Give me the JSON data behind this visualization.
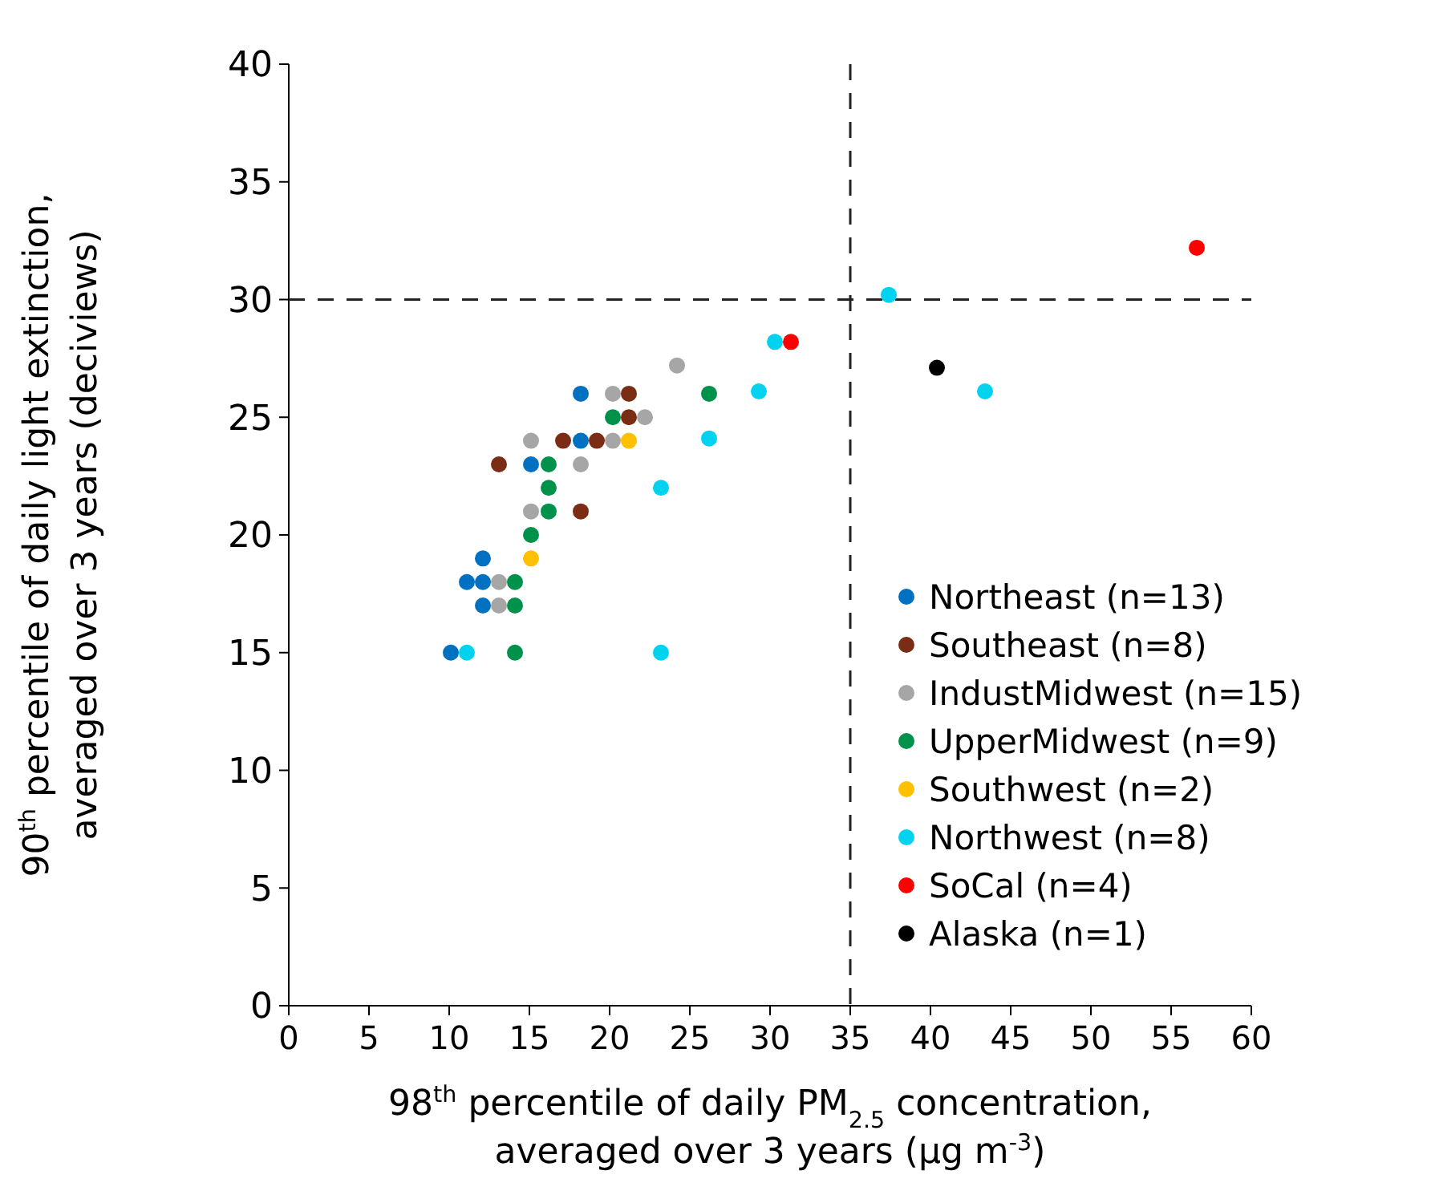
{
  "chart_data": {
    "type": "scatter",
    "xlabel": "98$^{th}$ percentile of daily PM$_{2.5}$ concentration, averaged over 3 years (µg m$^{-3}$)",
    "ylabel": "90$^{th}$ percentile of daily light extinction, averaged over 3 years (deciviews)",
    "xlim": [
      0,
      60
    ],
    "xticks": [
      0,
      5,
      10,
      15,
      20,
      25,
      30,
      35,
      40,
      45,
      50,
      55,
      60
    ],
    "ylim": [
      0,
      40
    ],
    "yticks": [
      0,
      5,
      10,
      15,
      20,
      25,
      30,
      35,
      40
    ],
    "grid": false,
    "legend": "right",
    "marker": "circle",
    "ref_lines": [
      {
        "axis": "x",
        "value": 35,
        "color": "#222222",
        "line_style": "dashed"
      },
      {
        "axis": "y",
        "value": 30,
        "color": "#222222",
        "line_style": "dashed"
      }
    ],
    "series": [
      {
        "name": "Northeast (n=13)",
        "color": "#0070c0",
        "x": [
          18.2,
          18.2,
          15.1,
          12.1,
          11.1,
          12.1,
          12.1,
          10.1
        ],
        "values": [
          26,
          24,
          23,
          19,
          18,
          18,
          17,
          15
        ]
      },
      {
        "name": "Southeast (n=8)",
        "color": "#7b2c14",
        "x": [
          21.2,
          21.2,
          17.1,
          19.2,
          13.1,
          18.2
        ],
        "values": [
          26,
          25,
          24,
          24,
          23,
          21
        ]
      },
      {
        "name": "IndustMidwest (n=15)",
        "color": "#a6a6a6",
        "x": [
          24.2,
          20.2,
          22.2,
          15.1,
          20.2,
          18.2,
          15.1,
          13.1,
          13.1
        ],
        "values": [
          27.2,
          26,
          25,
          24,
          24,
          23,
          21,
          18,
          17
        ]
      },
      {
        "name": "UpperMidwest (n=9)",
        "color": "#00914a",
        "x": [
          26.2,
          20.2,
          16.2,
          16.2,
          16.2,
          15.1,
          14.1,
          14.1,
          14.1
        ],
        "values": [
          26,
          25,
          23,
          22,
          21,
          20,
          18,
          17,
          15
        ]
      },
      {
        "name": "Southwest (n=2)",
        "color": "#ffc000",
        "x": [
          21.2,
          15.1
        ],
        "values": [
          24,
          19
        ]
      },
      {
        "name": "Northwest (n=8)",
        "color": "#00d2f0",
        "x": [
          30.3,
          29.3,
          26.2,
          23.2,
          11.1,
          23.2,
          37.4,
          43.4
        ],
        "values": [
          28.2,
          26.1,
          24.1,
          22,
          15,
          15,
          30.2,
          26.1
        ]
      },
      {
        "name": "SoCal (n=4)",
        "color": "#ff0000",
        "x": [
          31.3,
          56.6
        ],
        "values": [
          28.2,
          32.2
        ]
      },
      {
        "name": "Alaska (n=1)",
        "color": "#000000",
        "x": [
          40.4
        ],
        "values": [
          27.1
        ]
      }
    ]
  }
}
